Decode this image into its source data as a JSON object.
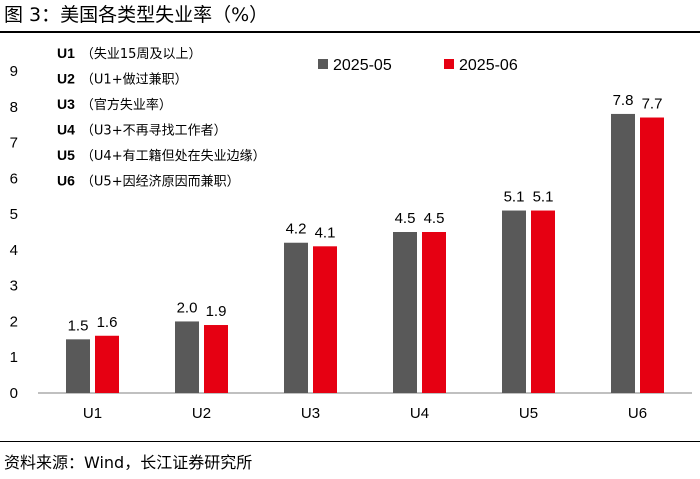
{
  "figure": {
    "title": "图 3：美国各类型失业率（%）",
    "source": "资料来源：Wind，长江证券研究所"
  },
  "colors": {
    "series1": "#595959",
    "series2": "#e60012",
    "axis": "#808080"
  },
  "definitions": [
    {
      "code": "U1",
      "text": "（失业15周及以上）"
    },
    {
      "code": "U2",
      "text": "（U1+做过兼职）"
    },
    {
      "code": "U3",
      "text": "（官方失业率）"
    },
    {
      "code": "U4",
      "text": "（U3+不再寻找工作者）"
    },
    {
      "code": "U5",
      "text": "（U4+有工籍但处在失业边缘）"
    },
    {
      "code": "U6",
      "text": "（U5+因经济原因而兼职）"
    }
  ],
  "chart_data": {
    "type": "bar",
    "title": "美国各类型失业率（%）",
    "categories": [
      "U1",
      "U2",
      "U3",
      "U4",
      "U5",
      "U6"
    ],
    "series": [
      {
        "name": "2025-05",
        "values": [
          1.5,
          2.0,
          4.2,
          4.5,
          5.1,
          7.8
        ],
        "labels": [
          "1.5",
          "2.0",
          "4.2",
          "4.5",
          "5.1",
          "7.8"
        ]
      },
      {
        "name": "2025-06",
        "values": [
          1.6,
          1.9,
          4.1,
          4.5,
          5.1,
          7.7
        ],
        "labels": [
          "1.6",
          "1.9",
          "4.1",
          "4.5",
          "5.1",
          "7.7"
        ]
      }
    ],
    "yticks": [
      0,
      1,
      2,
      3,
      4,
      5,
      6,
      7,
      8,
      9
    ],
    "ylim": [
      0,
      9
    ],
    "xlabel": "",
    "ylabel": "",
    "legend_position": "top-right",
    "grid": false
  }
}
